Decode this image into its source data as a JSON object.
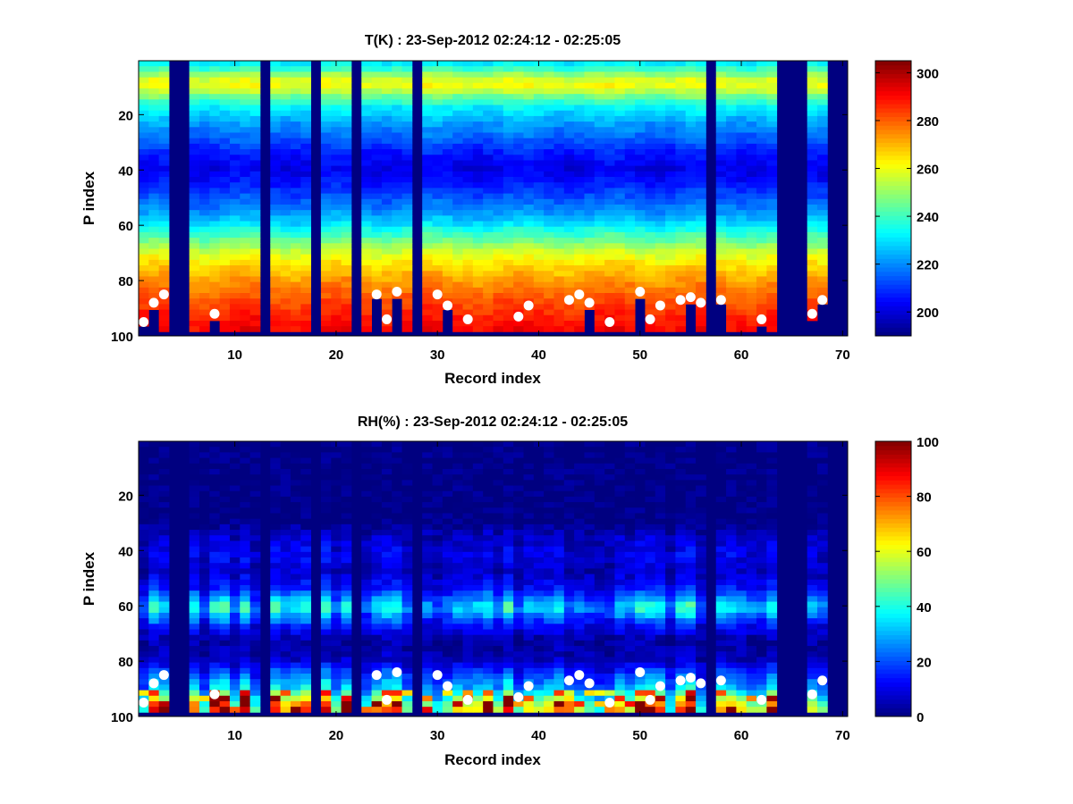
{
  "chart_data": [
    {
      "type": "heatmap",
      "title": "T(K) : 23-Sep-2012 02:24:12 - 02:25:05",
      "xlabel": "Record index",
      "ylabel": "P index",
      "xlim": [
        0.5,
        70.5
      ],
      "ylim": [
        100,
        0.5
      ],
      "x_ticks": [
        10,
        20,
        30,
        40,
        50,
        60,
        70
      ],
      "y_ticks": [
        20,
        40,
        60,
        80,
        100
      ],
      "colormap": "jet",
      "colorbar": {
        "min": 190,
        "max": 305,
        "ticks": [
          200,
          220,
          240,
          260,
          280,
          300
        ]
      },
      "grid": false,
      "vertical_profile_K": [
        {
          "p": 1,
          "v": 228
        },
        {
          "p": 4,
          "v": 240
        },
        {
          "p": 7,
          "v": 254
        },
        {
          "p": 9,
          "v": 262
        },
        {
          "p": 11,
          "v": 258
        },
        {
          "p": 14,
          "v": 246
        },
        {
          "p": 18,
          "v": 232
        },
        {
          "p": 24,
          "v": 222
        },
        {
          "p": 30,
          "v": 214
        },
        {
          "p": 35,
          "v": 206
        },
        {
          "p": 40,
          "v": 202
        },
        {
          "p": 45,
          "v": 206
        },
        {
          "p": 50,
          "v": 213
        },
        {
          "p": 55,
          "v": 220
        },
        {
          "p": 60,
          "v": 230
        },
        {
          "p": 65,
          "v": 243
        },
        {
          "p": 70,
          "v": 256
        },
        {
          "p": 75,
          "v": 266
        },
        {
          "p": 80,
          "v": 273
        },
        {
          "p": 85,
          "v": 279
        },
        {
          "p": 90,
          "v": 284
        },
        {
          "p": 94,
          "v": 288
        },
        {
          "p": 97,
          "v": 291
        }
      ],
      "missing_records": [
        4,
        5,
        13,
        18,
        22,
        28,
        57,
        64,
        65,
        66,
        69,
        70
      ],
      "surface_level_markers": [
        {
          "x": 1,
          "y": 95
        },
        {
          "x": 2,
          "y": 88
        },
        {
          "x": 3,
          "y": 85
        },
        {
          "x": 8,
          "y": 92
        },
        {
          "x": 24,
          "y": 85
        },
        {
          "x": 25,
          "y": 94
        },
        {
          "x": 26,
          "y": 84
        },
        {
          "x": 30,
          "y": 85
        },
        {
          "x": 31,
          "y": 89
        },
        {
          "x": 33,
          "y": 94
        },
        {
          "x": 38,
          "y": 93
        },
        {
          "x": 39,
          "y": 89
        },
        {
          "x": 43,
          "y": 87
        },
        {
          "x": 44,
          "y": 85
        },
        {
          "x": 45,
          "y": 88
        },
        {
          "x": 47,
          "y": 95
        },
        {
          "x": 50,
          "y": 84
        },
        {
          "x": 51,
          "y": 94
        },
        {
          "x": 52,
          "y": 89
        },
        {
          "x": 54,
          "y": 87
        },
        {
          "x": 55,
          "y": 86
        },
        {
          "x": 56,
          "y": 88
        },
        {
          "x": 58,
          "y": 87
        },
        {
          "x": 62,
          "y": 94
        },
        {
          "x": 67,
          "y": 92
        },
        {
          "x": 68,
          "y": 87
        }
      ]
    },
    {
      "type": "heatmap",
      "title": "RH(%) : 23-Sep-2012 02:24:12 - 02:25:05",
      "xlabel": "Record index",
      "ylabel": "P index",
      "xlim": [
        0.5,
        70.5
      ],
      "ylim": [
        100,
        0.5
      ],
      "x_ticks": [
        10,
        20,
        30,
        40,
        50,
        60,
        70
      ],
      "y_ticks": [
        20,
        40,
        60,
        80,
        100
      ],
      "colormap": "jet",
      "colorbar": {
        "min": 0,
        "max": 100,
        "ticks": [
          0,
          20,
          40,
          60,
          80,
          100
        ]
      },
      "grid": false,
      "vertical_profile_pct": [
        {
          "p": 1,
          "v": 0
        },
        {
          "p": 30,
          "v": 0
        },
        {
          "p": 35,
          "v": 6
        },
        {
          "p": 42,
          "v": 10
        },
        {
          "p": 48,
          "v": 6
        },
        {
          "p": 54,
          "v": 12
        },
        {
          "p": 58,
          "v": 24
        },
        {
          "p": 61,
          "v": 34
        },
        {
          "p": 64,
          "v": 24
        },
        {
          "p": 68,
          "v": 12
        },
        {
          "p": 73,
          "v": 3
        },
        {
          "p": 80,
          "v": 6
        },
        {
          "p": 85,
          "v": 18
        },
        {
          "p": 90,
          "v": 28
        },
        {
          "p": 93,
          "v": 42
        },
        {
          "p": 97,
          "v": 62
        }
      ],
      "missing_records": [
        4,
        5,
        13,
        18,
        22,
        28,
        57,
        64,
        65,
        66,
        69,
        70
      ],
      "surface_level_markers": [
        {
          "x": 1,
          "y": 95
        },
        {
          "x": 2,
          "y": 88
        },
        {
          "x": 3,
          "y": 85
        },
        {
          "x": 8,
          "y": 92
        },
        {
          "x": 24,
          "y": 85
        },
        {
          "x": 25,
          "y": 94
        },
        {
          "x": 26,
          "y": 84
        },
        {
          "x": 30,
          "y": 85
        },
        {
          "x": 31,
          "y": 89
        },
        {
          "x": 33,
          "y": 94
        },
        {
          "x": 38,
          "y": 93
        },
        {
          "x": 39,
          "y": 89
        },
        {
          "x": 43,
          "y": 87
        },
        {
          "x": 44,
          "y": 85
        },
        {
          "x": 45,
          "y": 88
        },
        {
          "x": 47,
          "y": 95
        },
        {
          "x": 50,
          "y": 84
        },
        {
          "x": 51,
          "y": 94
        },
        {
          "x": 52,
          "y": 89
        },
        {
          "x": 54,
          "y": 87
        },
        {
          "x": 55,
          "y": 86
        },
        {
          "x": 56,
          "y": 88
        },
        {
          "x": 58,
          "y": 87
        },
        {
          "x": 62,
          "y": 94
        },
        {
          "x": 67,
          "y": 92
        },
        {
          "x": 68,
          "y": 87
        }
      ]
    }
  ]
}
